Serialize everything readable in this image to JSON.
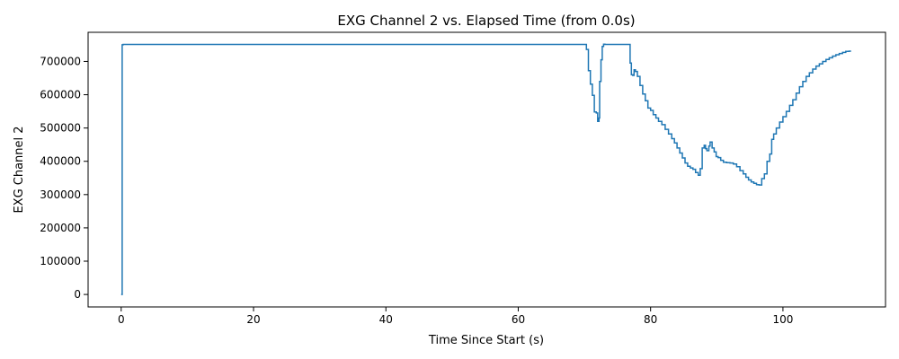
{
  "chart_data": {
    "type": "line",
    "title": "EXG Channel 2 vs. Elapsed Time (from 0.0s)",
    "xlabel": "Time Since Start (s)",
    "ylabel": "EXG Channel 2",
    "xlim": [
      -5,
      115.5
    ],
    "ylim": [
      -37500,
      787500
    ],
    "xticks": [
      0,
      20,
      40,
      60,
      80,
      100
    ],
    "yticks": [
      0,
      100000,
      200000,
      300000,
      400000,
      500000,
      600000,
      700000
    ],
    "grid": false,
    "legend": "none",
    "series": [
      {
        "color": "#1f77b4",
        "x": [
          0,
          0.15,
          0.3,
          10,
          30,
          50,
          70,
          70.3,
          70.6,
          70.9,
          71.2,
          71.5,
          71.8,
          72.0,
          72.2,
          72.3,
          72.5,
          72.7,
          72.9,
          73.1,
          73.4,
          74,
          76.7,
          76.9,
          77.1,
          77.3,
          77.5,
          77.7,
          78.0,
          78.4,
          78.8,
          79.2,
          79.6,
          80.0,
          80.4,
          80.8,
          81.2,
          81.7,
          82.2,
          82.7,
          83.2,
          83.6,
          84.0,
          84.4,
          84.8,
          85.2,
          85.6,
          86.0,
          86.4,
          86.8,
          87.2,
          87.5,
          87.8,
          88.1,
          88.3,
          88.5,
          88.8,
          89.0,
          89.3,
          89.6,
          89.9,
          90.2,
          90.6,
          91.0,
          91.5,
          92.0,
          92.5,
          93.0,
          93.5,
          94.0,
          94.4,
          94.8,
          95.2,
          95.6,
          96.0,
          96.4,
          96.8,
          97.2,
          97.6,
          98.0,
          98.3,
          98.6,
          99.0,
          99.5,
          100.0,
          100.5,
          101.0,
          101.5,
          102.0,
          102.5,
          103.0,
          103.5,
          104.0,
          104.5,
          105.0,
          105.5,
          106.0,
          106.5,
          107.0,
          107.5,
          108.0,
          108.5,
          109.0,
          109.5,
          110.0,
          110.3
        ],
        "y": [
          0,
          750000,
          751000,
          751000,
          751000,
          751000,
          751000,
          736000,
          672000,
          632000,
          598000,
          548000,
          545000,
          520000,
          530000,
          640000,
          705000,
          745000,
          752000,
          751000,
          751000,
          751000,
          751000,
          695000,
          660000,
          658000,
          675000,
          670000,
          655000,
          628000,
          602000,
          582000,
          560000,
          553000,
          540000,
          530000,
          520000,
          510000,
          496000,
          482000,
          468000,
          455000,
          440000,
          425000,
          410000,
          395000,
          385000,
          380000,
          376000,
          366000,
          358000,
          378000,
          440000,
          448000,
          438000,
          432000,
          446000,
          458000,
          440000,
          428000,
          414000,
          411000,
          403000,
          397000,
          396000,
          395000,
          392000,
          384000,
          372000,
          362000,
          352000,
          344000,
          338000,
          334000,
          330000,
          329000,
          348000,
          362000,
          400000,
          422000,
          466000,
          482000,
          500000,
          518000,
          534000,
          550000,
          568000,
          585000,
          605000,
          624000,
          640000,
          655000,
          666000,
          677000,
          686000,
          693000,
          700000,
          706000,
          711000,
          716000,
          720000,
          724000,
          727000,
          730000,
          731000,
          731000
        ]
      }
    ]
  }
}
